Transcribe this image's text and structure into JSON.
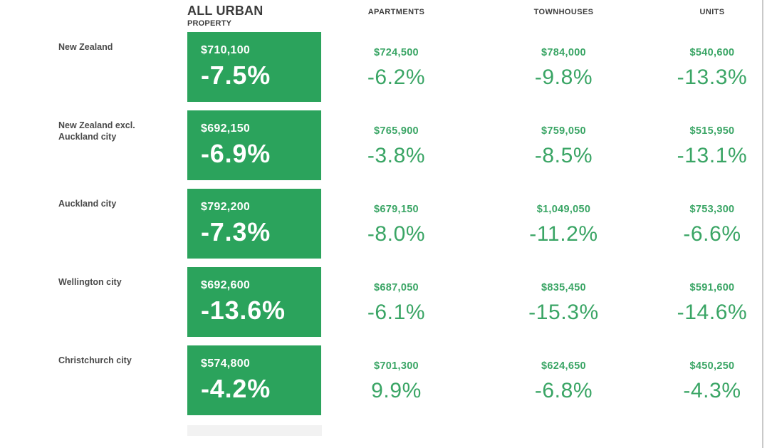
{
  "table": {
    "header": {
      "all_urban_line1": "ALL URBAN",
      "all_urban_line2": "PROPERTY",
      "apartments": "APARTMENTS",
      "townhouses": "TOWNHOUSES",
      "units": "UNITS"
    },
    "rows": [
      {
        "region": "New Zealand",
        "all_urban": {
          "price": "$710,100",
          "change": "-7.5%"
        },
        "apartments": {
          "price": "$724,500",
          "change": "-6.2%"
        },
        "townhouses": {
          "price": "$784,000",
          "change": "-9.8%"
        },
        "units": {
          "price": "$540,600",
          "change": "-13.3%"
        }
      },
      {
        "region": "New Zealand excl.\nAuckland city",
        "all_urban": {
          "price": "$692,150",
          "change": "-6.9%"
        },
        "apartments": {
          "price": "$765,900",
          "change": "-3.8%"
        },
        "townhouses": {
          "price": "$759,050",
          "change": "-8.5%"
        },
        "units": {
          "price": "$515,950",
          "change": "-13.1%"
        }
      },
      {
        "region": "Auckland city",
        "all_urban": {
          "price": "$792,200",
          "change": "-7.3%"
        },
        "apartments": {
          "price": "$679,150",
          "change": "-8.0%"
        },
        "townhouses": {
          "price": "$1,049,050",
          "change": "-11.2%"
        },
        "units": {
          "price": "$753,300",
          "change": "-6.6%"
        }
      },
      {
        "region": "Wellington city",
        "all_urban": {
          "price": "$692,600",
          "change": "-13.6%"
        },
        "apartments": {
          "price": "$687,050",
          "change": "-6.1%"
        },
        "townhouses": {
          "price": "$835,450",
          "change": "-15.3%"
        },
        "units": {
          "price": "$591,600",
          "change": "-14.6%"
        }
      },
      {
        "region": "Christchurch city",
        "all_urban": {
          "price": "$574,800",
          "change": "-4.2%"
        },
        "apartments": {
          "price": "$701,300",
          "change": "9.9%"
        },
        "townhouses": {
          "price": "$624,650",
          "change": "-6.8%"
        },
        "units": {
          "price": "$450,250",
          "change": "-4.3%"
        }
      }
    ]
  },
  "colors": {
    "box_green": "#2ba35c",
    "text_green": "#3aa565",
    "header_text": "#3c3c3c",
    "label_text": "#4a4a4a",
    "border_line": "#c9c9c9"
  },
  "chart_data": {
    "type": "table",
    "title": "Property prices and percentage change by dwelling type",
    "columns": [
      "ALL URBAN PROPERTY",
      "APARTMENTS",
      "TOWNHOUSES",
      "UNITS"
    ],
    "categories": [
      "New Zealand",
      "New Zealand excl. Auckland city",
      "Auckland city",
      "Wellington city",
      "Christchurch city"
    ],
    "series": [
      {
        "name": "ALL URBAN PROPERTY",
        "prices": [
          710100,
          692150,
          792200,
          692600,
          574800
        ],
        "changes_pct": [
          -7.5,
          -6.9,
          -7.3,
          -13.6,
          -4.2
        ]
      },
      {
        "name": "APARTMENTS",
        "prices": [
          724500,
          765900,
          679150,
          687050,
          701300
        ],
        "changes_pct": [
          -6.2,
          -3.8,
          -8.0,
          -6.1,
          9.9
        ]
      },
      {
        "name": "TOWNHOUSES",
        "prices": [
          784000,
          759050,
          1049050,
          835450,
          624650
        ],
        "changes_pct": [
          -9.8,
          -8.5,
          -11.2,
          -15.3,
          -6.8
        ]
      },
      {
        "name": "UNITS",
        "prices": [
          540600,
          515950,
          753300,
          591600,
          450250
        ],
        "changes_pct": [
          -13.3,
          -13.1,
          -6.6,
          -14.6,
          -4.3
        ]
      }
    ],
    "layout": {
      "highlight_column": "ALL URBAN PROPERTY",
      "highlight_style": "white text on green box"
    }
  }
}
